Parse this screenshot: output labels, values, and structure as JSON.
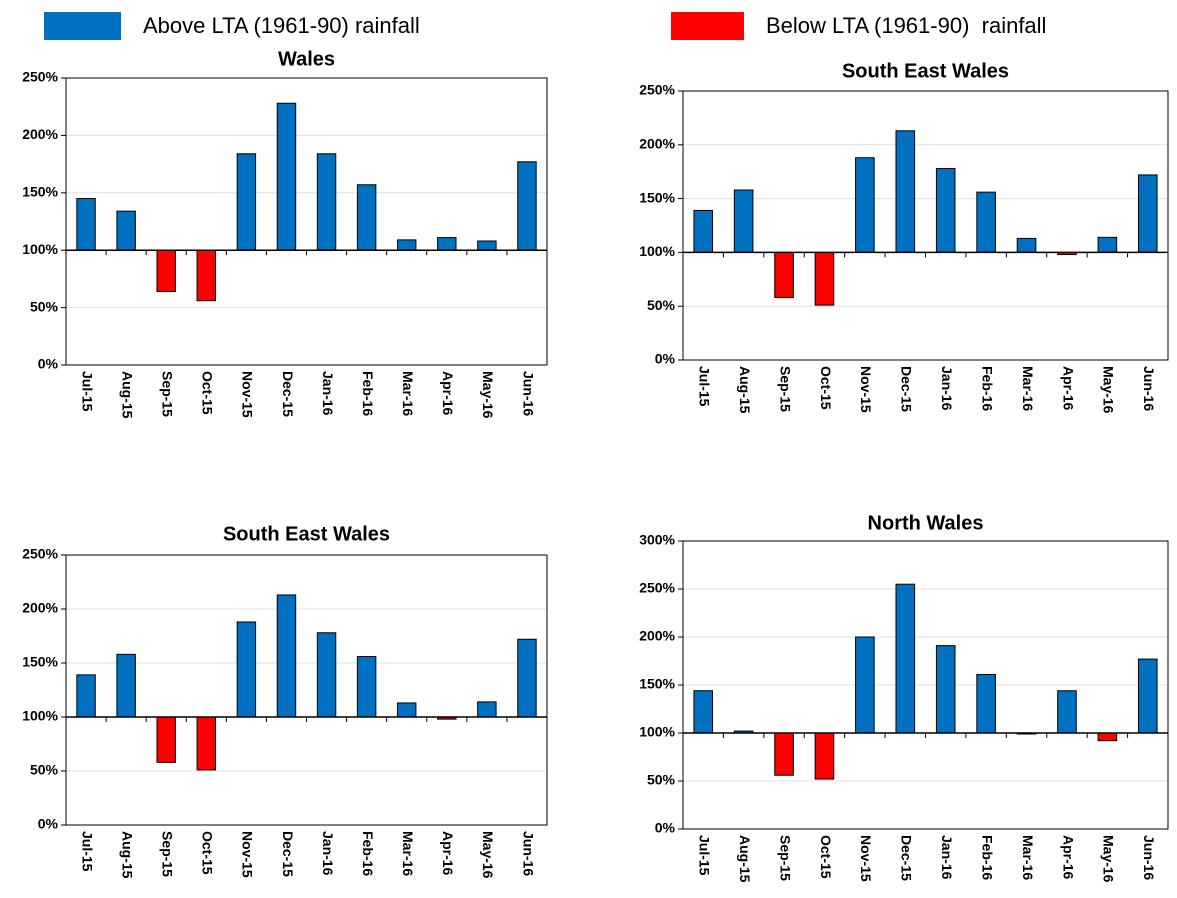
{
  "legend": [
    {
      "name": "Above LTA (1961-90) rainfall",
      "color": "#0070c0"
    },
    {
      "name": "Below LTA (1961-90)  rainfall",
      "color": "#ff0000"
    }
  ],
  "chart_data": [
    {
      "type": "bar",
      "title": "Wales",
      "categories": [
        "Jul-15",
        "Aug-15",
        "Sep-15",
        "Oct-15",
        "Nov-15",
        "Dec-15",
        "Jan-16",
        "Feb-16",
        "Mar-16",
        "Apr-16",
        "May-16",
        "Jun-16"
      ],
      "values": [
        145,
        134,
        64,
        56,
        184,
        228,
        184,
        157,
        109,
        111,
        108,
        177
      ],
      "baseline": 100,
      "ylim": [
        0,
        250
      ],
      "yticks": [
        {
          "value": 0,
          "label": "0%"
        },
        {
          "value": 50,
          "label": "50%"
        },
        {
          "value": 100,
          "label": "100%"
        },
        {
          "value": 150,
          "label": "150%"
        },
        {
          "value": 200,
          "label": "200%"
        },
        {
          "value": 250,
          "label": "250%"
        }
      ],
      "grid": true
    },
    {
      "type": "bar",
      "title": "South East Wales",
      "categories": [
        "Jul-15",
        "Aug-15",
        "Sep-15",
        "Oct-15",
        "Nov-15",
        "Dec-15",
        "Jan-16",
        "Feb-16",
        "Mar-16",
        "Apr-16",
        "May-16",
        "Jun-16"
      ],
      "values": [
        139,
        158,
        58,
        51,
        188,
        213,
        178,
        156,
        113,
        98,
        114,
        172
      ],
      "baseline": 100,
      "ylim": [
        0,
        250
      ],
      "yticks": [
        {
          "value": 0,
          "label": "0%"
        },
        {
          "value": 50,
          "label": "50%"
        },
        {
          "value": 100,
          "label": "100%"
        },
        {
          "value": 150,
          "label": "150%"
        },
        {
          "value": 200,
          "label": "200%"
        },
        {
          "value": 250,
          "label": "250%"
        }
      ],
      "grid": true
    },
    {
      "type": "bar",
      "title": "South East Wales",
      "categories": [
        "Jul-15",
        "Aug-15",
        "Sep-15",
        "Oct-15",
        "Nov-15",
        "Dec-15",
        "Jan-16",
        "Feb-16",
        "Mar-16",
        "Apr-16",
        "May-16",
        "Jun-16"
      ],
      "values": [
        139,
        158,
        58,
        51,
        188,
        213,
        178,
        156,
        113,
        98,
        114,
        172
      ],
      "baseline": 100,
      "ylim": [
        0,
        250
      ],
      "yticks": [
        {
          "value": 0,
          "label": "0%"
        },
        {
          "value": 50,
          "label": "50%"
        },
        {
          "value": 100,
          "label": "100%"
        },
        {
          "value": 150,
          "label": "150%"
        },
        {
          "value": 200,
          "label": "200%"
        },
        {
          "value": 250,
          "label": "250%"
        }
      ],
      "grid": true
    },
    {
      "type": "bar",
      "title": "North Wales",
      "categories": [
        "Jul-15",
        "Aug-15",
        "Sep-15",
        "Oct-15",
        "Nov-15",
        "Dec-15",
        "Jan-16",
        "Feb-16",
        "Mar-16",
        "Apr-16",
        "May-16",
        "Jun-16"
      ],
      "values": [
        144,
        102,
        56,
        52,
        200,
        255,
        191,
        161,
        99,
        144,
        92,
        177
      ],
      "baseline": 100,
      "ylim": [
        0,
        300
      ],
      "yticks": [
        {
          "value": 0,
          "label": "0%"
        },
        {
          "value": 50,
          "label": "50%"
        },
        {
          "value": 100,
          "label": "100%"
        },
        {
          "value": 150,
          "label": "150%"
        },
        {
          "value": 200,
          "label": "200%"
        },
        {
          "value": 250,
          "label": "250%"
        },
        {
          "value": 300,
          "label": "300%"
        }
      ],
      "grid": true
    }
  ]
}
